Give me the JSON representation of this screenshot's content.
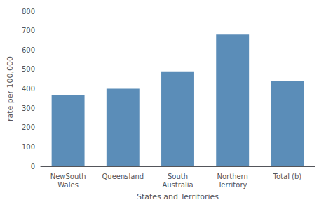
{
  "chart_data": {
    "type": "bar",
    "categories": [
      "NewSouth\nWales",
      "Queensland",
      "South\nAustralia",
      "Northern\nTerritory",
      "Total (b)"
    ],
    "values": [
      368,
      400,
      490,
      680,
      440
    ],
    "color": "#5b8db8",
    "xlabel": "States and Territories",
    "ylabel": "rate per 100,000",
    "ylim": [
      0,
      800
    ],
    "yticks": [
      0,
      100,
      200,
      300,
      400,
      500,
      600,
      700,
      800
    ],
    "grid": false
  }
}
